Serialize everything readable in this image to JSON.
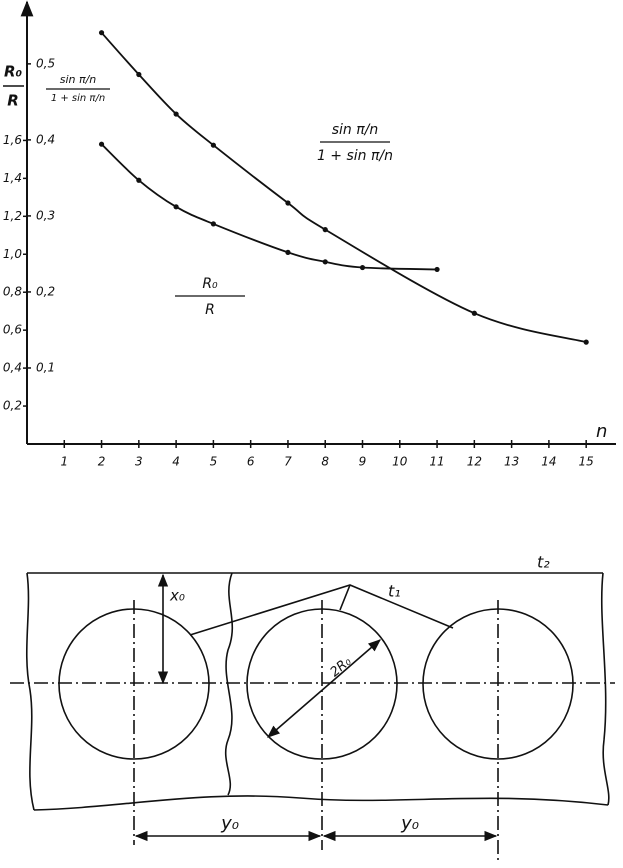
{
  "chart_data": {
    "type": "line",
    "y_label": {
      "num": "R₀",
      "den": "R"
    },
    "y2_label": {
      "num": "sin π/n",
      "den": "1 + sin π/n"
    },
    "x_label": "n",
    "xlim": [
      0,
      15.8
    ],
    "xticks": [
      1,
      2,
      3,
      4,
      5,
      6,
      7,
      8,
      9,
      10,
      11,
      12,
      13,
      14,
      15
    ],
    "ylim": [
      0,
      2.34
    ],
    "yticks": [
      {
        "value": 0.2,
        "label": "0,2"
      },
      {
        "value": 0.4,
        "label": "0,4"
      },
      {
        "value": 0.6,
        "label": "0,6"
      },
      {
        "value": 0.8,
        "label": "0,8"
      },
      {
        "value": 1.0,
        "label": "1,0"
      },
      {
        "value": 1.2,
        "label": "1,2"
      },
      {
        "value": 1.4,
        "label": "1,4"
      },
      {
        "value": 1.6,
        "label": "1,6"
      }
    ],
    "y2lim": [
      0,
      0.584
    ],
    "y2ticks": [
      {
        "value": 0.1,
        "label": "0,1"
      },
      {
        "value": 0.2,
        "label": "0,2"
      },
      {
        "value": 0.3,
        "label": "0,3"
      },
      {
        "value": 0.4,
        "label": "0,4"
      },
      {
        "value": 0.5,
        "label": "0,5"
      }
    ],
    "series": [
      {
        "label": {
          "num": "sin π/n",
          "den": "1 + sin π/n"
        },
        "axis": "y2",
        "color": "#111111",
        "x": [
          2,
          3,
          4,
          5,
          7,
          8,
          12,
          15
        ],
        "values": [
          0.541,
          0.486,
          0.434,
          0.393,
          0.317,
          0.282,
          0.172,
          0.134
        ]
      },
      {
        "label": {
          "num": "R₀",
          "den": "R"
        },
        "color": "#111111",
        "x": [
          2,
          3,
          4,
          5,
          7,
          8,
          9,
          11
        ],
        "values": [
          1.58,
          1.39,
          1.25,
          1.16,
          1.01,
          0.96,
          0.93,
          0.92
        ]
      }
    ]
  },
  "diagram": {
    "labels": {
      "t2": "t₂",
      "t1": "t₁",
      "x0": "x₀",
      "r": "2R₀",
      "y0_left": "y₀",
      "y0_right": "y₀"
    }
  }
}
